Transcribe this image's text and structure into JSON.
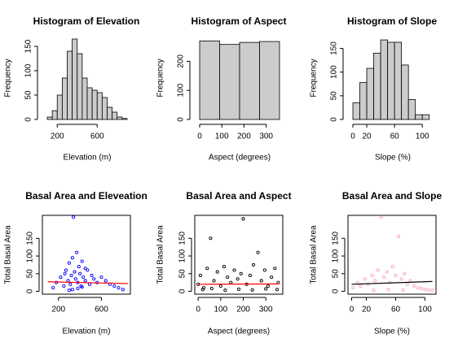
{
  "chart_data": [
    {
      "type": "histogram",
      "title": "Histogram of Elevation",
      "xlabel": "Elevation (m)",
      "ylabel": "Frequency",
      "bins": [
        100,
        150,
        200,
        250,
        300,
        350,
        400,
        450,
        500,
        550,
        600,
        650,
        700,
        750,
        800,
        850,
        900
      ],
      "values": [
        5,
        18,
        50,
        85,
        140,
        165,
        135,
        85,
        65,
        60,
        55,
        45,
        25,
        15,
        5,
        2
      ],
      "color": "#cccccc",
      "xlim": [
        100,
        900
      ],
      "ylim": [
        0,
        170
      ],
      "xticks": [
        200,
        600
      ],
      "yticks": [
        0,
        50,
        100,
        150
      ]
    },
    {
      "type": "histogram",
      "title": "Histogram of Aspect",
      "xlabel": "Aspect (degrees)",
      "ylabel": "Frequency",
      "bins": [
        0,
        90,
        180,
        270,
        360
      ],
      "values": [
        270,
        258,
        265,
        268
      ],
      "color": "#cccccc",
      "xlim": [
        0,
        360
      ],
      "ylim": [
        0,
        285
      ],
      "xticks": [
        0,
        100,
        200,
        300
      ],
      "yticks": [
        0,
        100,
        200
      ]
    },
    {
      "type": "histogram",
      "title": "Histogram of Slope",
      "xlabel": "Slope (%)",
      "ylabel": "Frequency",
      "bins": [
        0,
        10,
        20,
        30,
        40,
        50,
        60,
        70,
        80,
        90,
        100,
        110
      ],
      "values": [
        35,
        78,
        108,
        140,
        168,
        163,
        163,
        115,
        42,
        10,
        10
      ],
      "color": "#cccccc",
      "xlim": [
        0,
        115
      ],
      "ylim": [
        0,
        175
      ],
      "xticks": [
        0,
        20,
        60,
        100
      ],
      "yticks": [
        0,
        50,
        100,
        150
      ]
    },
    {
      "type": "scatter",
      "title": "Basal Area and Eleveation",
      "xlabel": "Elevation (m)",
      "ylabel": "Total Basal Area",
      "x": [
        150,
        180,
        220,
        250,
        270,
        290,
        300,
        310,
        320,
        330,
        340,
        350,
        360,
        370,
        380,
        390,
        400,
        410,
        420,
        430,
        450,
        470,
        490,
        510,
        530,
        560,
        600,
        640,
        680,
        720,
        760,
        800,
        330,
        380,
        420,
        300,
        450,
        260
      ],
      "y": [
        10,
        25,
        40,
        15,
        60,
        30,
        80,
        20,
        45,
        95,
        210,
        55,
        35,
        110,
        25,
        70,
        50,
        15,
        85,
        40,
        30,
        60,
        20,
        45,
        35,
        25,
        40,
        30,
        20,
        15,
        10,
        5,
        5,
        8,
        12,
        3,
        65,
        50
      ],
      "color": "#0000ff",
      "fit": {
        "x": [
          100,
          850
        ],
        "y": [
          27,
          22
        ],
        "color": "#ff0000"
      },
      "xlim": [
        50,
        870
      ],
      "ylim": [
        -8,
        215
      ],
      "xticks": [
        200,
        600
      ],
      "yticks": [
        0,
        50,
        100,
        150
      ]
    },
    {
      "type": "scatter",
      "title": "Basal Area and Aspect",
      "xlabel": "Aspect (degrees)",
      "ylabel": "Total Basal Area",
      "x": [
        0,
        10,
        25,
        40,
        55,
        70,
        85,
        100,
        115,
        130,
        145,
        160,
        175,
        190,
        200,
        215,
        230,
        245,
        265,
        280,
        295,
        310,
        325,
        340,
        355,
        20,
        60,
        120,
        180,
        240,
        300,
        350
      ],
      "y": [
        20,
        45,
        10,
        65,
        150,
        30,
        55,
        15,
        70,
        40,
        25,
        60,
        35,
        50,
        205,
        20,
        45,
        75,
        110,
        30,
        60,
        15,
        40,
        65,
        25,
        5,
        8,
        3,
        6,
        4,
        7,
        5
      ],
      "color": "#000000",
      "fit": {
        "x": [
          0,
          360
        ],
        "y": [
          20,
          21
        ],
        "color": "#ff0000"
      },
      "xlim": [
        -15,
        375
      ],
      "ylim": [
        -8,
        215
      ],
      "xticks": [
        0,
        100,
        200,
        300
      ],
      "yticks": [
        0,
        50,
        100,
        150
      ]
    },
    {
      "type": "scatter",
      "title": "Basal Area and Slope",
      "xlabel": "Slope (%)",
      "ylabel": "Total Basal Area",
      "x": [
        2,
        8,
        12,
        18,
        22,
        28,
        32,
        36,
        40,
        44,
        48,
        52,
        56,
        60,
        64,
        68,
        72,
        76,
        80,
        85,
        90,
        95,
        100,
        105,
        110,
        30,
        50,
        70
      ],
      "y": [
        10,
        25,
        15,
        35,
        20,
        45,
        30,
        60,
        210,
        40,
        55,
        25,
        70,
        45,
        155,
        35,
        50,
        20,
        30,
        15,
        10,
        8,
        5,
        4,
        3,
        3,
        5,
        4
      ],
      "color": "#f4a6c0",
      "fit": {
        "x": [
          0,
          110
        ],
        "y": [
          20,
          28
        ],
        "color": "#000000"
      },
      "xlim": [
        -5,
        115
      ],
      "ylim": [
        -8,
        215
      ],
      "xticks": [
        0,
        20,
        60,
        100
      ],
      "yticks": [
        0,
        50,
        100,
        150
      ]
    }
  ]
}
